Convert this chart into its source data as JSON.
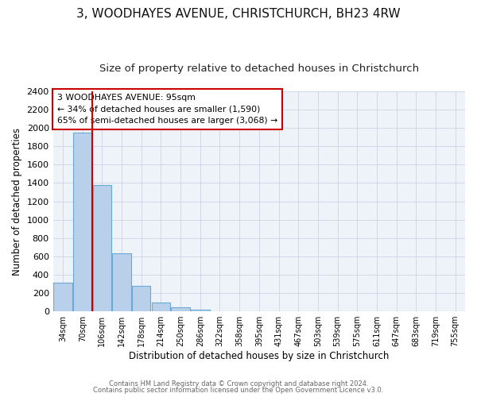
{
  "title": "3, WOODHAYES AVENUE, CHRISTCHURCH, BH23 4RW",
  "subtitle": "Size of property relative to detached houses in Christchurch",
  "xlabel": "Distribution of detached houses by size in Christchurch",
  "ylabel": "Number of detached properties",
  "bar_labels": [
    "34sqm",
    "70sqm",
    "106sqm",
    "142sqm",
    "178sqm",
    "214sqm",
    "250sqm",
    "286sqm",
    "322sqm",
    "358sqm",
    "395sqm",
    "431sqm",
    "467sqm",
    "503sqm",
    "539sqm",
    "575sqm",
    "611sqm",
    "647sqm",
    "683sqm",
    "719sqm",
    "755sqm"
  ],
  "bar_values": [
    315,
    1950,
    1380,
    630,
    275,
    95,
    42,
    20,
    0,
    0,
    0,
    0,
    0,
    0,
    0,
    0,
    0,
    0,
    0,
    0,
    0
  ],
  "bar_color": "#b8d0ea",
  "bar_edgecolor": "#6aaad4",
  "vline_x": 1.5,
  "vline_color": "#cc0000",
  "annotation_title": "3 WOODHAYES AVENUE: 95sqm",
  "annotation_line1": "← 34% of detached houses are smaller (1,590)",
  "annotation_line2": "65% of semi-detached houses are larger (3,068) →",
  "annotation_box_edgecolor": "#cc0000",
  "ylim": [
    0,
    2400
  ],
  "yticks": [
    0,
    200,
    400,
    600,
    800,
    1000,
    1200,
    1400,
    1600,
    1800,
    2000,
    2200,
    2400
  ],
  "footer1": "Contains HM Land Registry data © Crown copyright and database right 2024.",
  "footer2": "Contains public sector information licensed under the Open Government Licence v3.0.",
  "background_color": "#eef2f9",
  "title_fontsize": 11,
  "subtitle_fontsize": 9.5,
  "bar_width": 0.95
}
